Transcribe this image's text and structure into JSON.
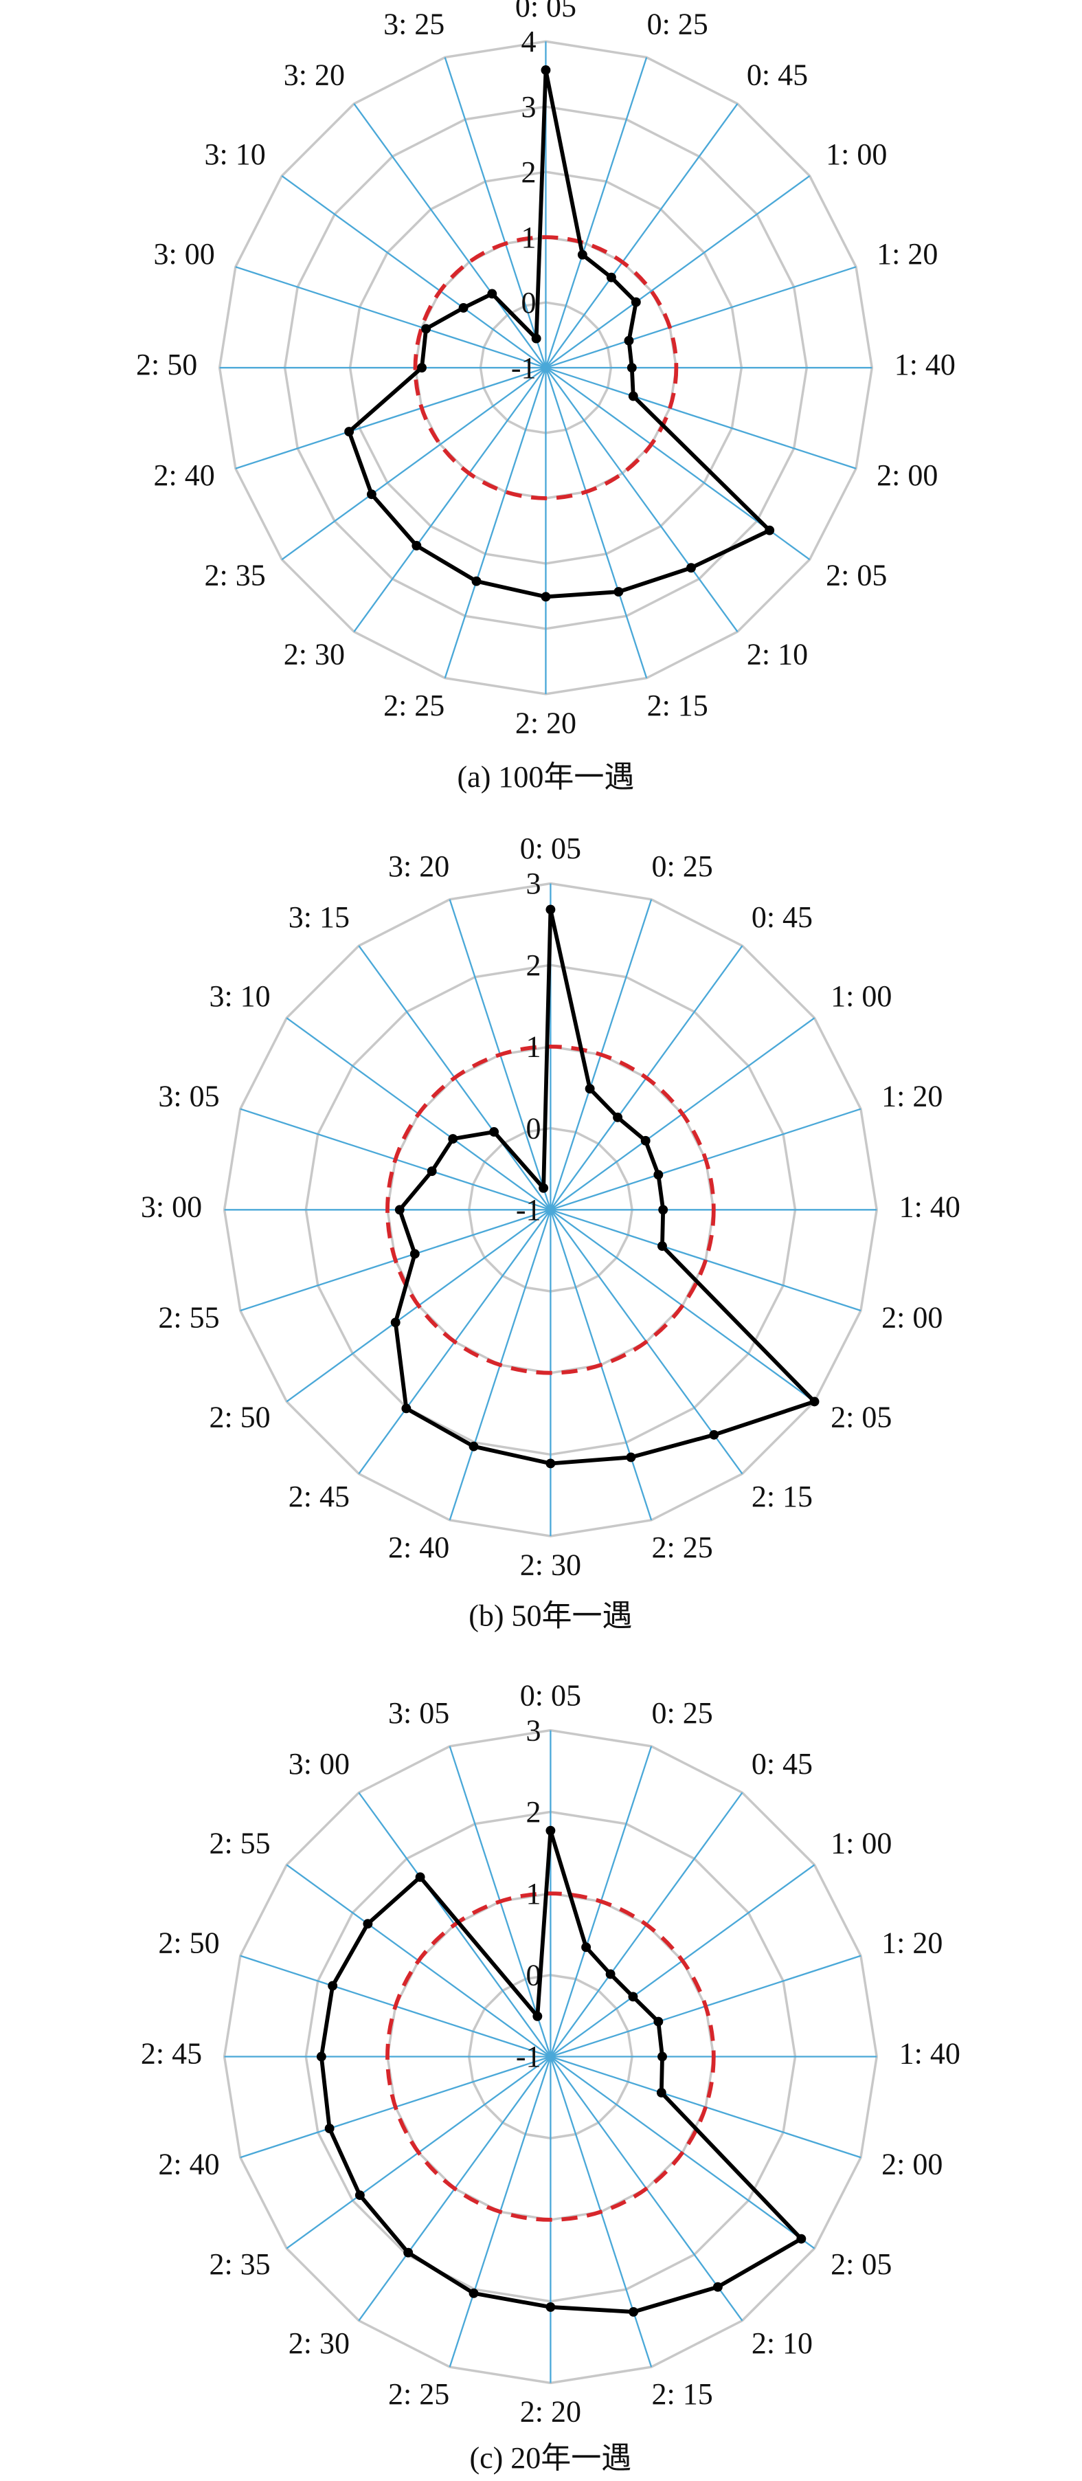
{
  "chart_data": [
    {
      "type": "radar",
      "caption": "(a) 100年一遇",
      "axes": [
        "0: 05",
        "0: 25",
        "0: 45",
        "1: 00",
        "1: 20",
        "1: 40",
        "2: 00",
        "2: 05",
        "2: 10",
        "2: 15",
        "2: 20",
        "2: 25",
        "2: 30",
        "2: 35",
        "2: 40",
        "2: 50",
        "3: 00",
        "3: 10",
        "3: 20",
        "3: 25"
      ],
      "values": [
        3.56,
        0.82,
        0.71,
        0.71,
        0.34,
        0.32,
        0.41,
        3.24,
        2.79,
        2.61,
        2.51,
        2.44,
        2.37,
        2.3,
        2.17,
        0.9,
        0.93,
        0.56,
        0.4,
        -0.53
      ],
      "color": "#000000",
      "rlim": [
        -1,
        4
      ],
      "rticks": [
        -1,
        0,
        1,
        2,
        3,
        4
      ],
      "reference": {
        "value": 1,
        "color": "#d7262b"
      },
      "grid_color": "#c8c8c8",
      "spoke_color": "#4aa8d8"
    },
    {
      "type": "radar",
      "caption": "(b) 50年一遇",
      "axes": [
        "0: 05",
        "0: 25",
        "0: 45",
        "1: 00",
        "1: 20",
        "1: 40",
        "2: 00",
        "2: 05",
        "2: 15",
        "2: 25",
        "2: 30",
        "2: 40",
        "2: 45",
        "2: 50",
        "2: 55",
        "3: 00",
        "3: 05",
        "3: 10",
        "3: 15",
        "3: 20"
      ],
      "values": [
        2.68,
        0.56,
        0.4,
        0.44,
        0.39,
        0.38,
        0.44,
        3.0,
        2.41,
        2.19,
        2.11,
        2.05,
        2.01,
        1.35,
        0.75,
        0.85,
        0.53,
        0.48,
        0.18,
        -0.72
      ],
      "color": "#000000",
      "rlim": [
        -1,
        3
      ],
      "rticks": [
        -1,
        0,
        1,
        2,
        3
      ],
      "reference": {
        "value": 1,
        "color": "#d7262b"
      },
      "grid_color": "#c8c8c8",
      "spoke_color": "#4aa8d8"
    },
    {
      "type": "radar",
      "caption": "(c) 20年一遇",
      "axes": [
        "0: 05",
        "0: 25",
        "0: 45",
        "1: 00",
        "1: 20",
        "1: 40",
        "2: 00",
        "2: 05",
        "2: 10",
        "2: 15",
        "2: 20",
        "2: 25",
        "2: 30",
        "2: 35",
        "2: 40",
        "2: 45",
        "2: 50",
        "2: 55",
        "3: 00",
        "3: 05"
      ],
      "values": [
        1.77,
        0.41,
        0.25,
        0.25,
        0.39,
        0.37,
        0.43,
        2.8,
        2.49,
        2.29,
        2.07,
        2.05,
        1.97,
        1.89,
        1.85,
        1.81,
        1.81,
        1.77,
        1.72,
        -0.48
      ],
      "color": "#000000",
      "rlim": [
        -1,
        3
      ],
      "rticks": [
        -1,
        0,
        1,
        2,
        3
      ],
      "reference": {
        "value": 1,
        "color": "#d7262b"
      },
      "grid_color": "#c8c8c8",
      "spoke_color": "#4aa8d8"
    }
  ]
}
